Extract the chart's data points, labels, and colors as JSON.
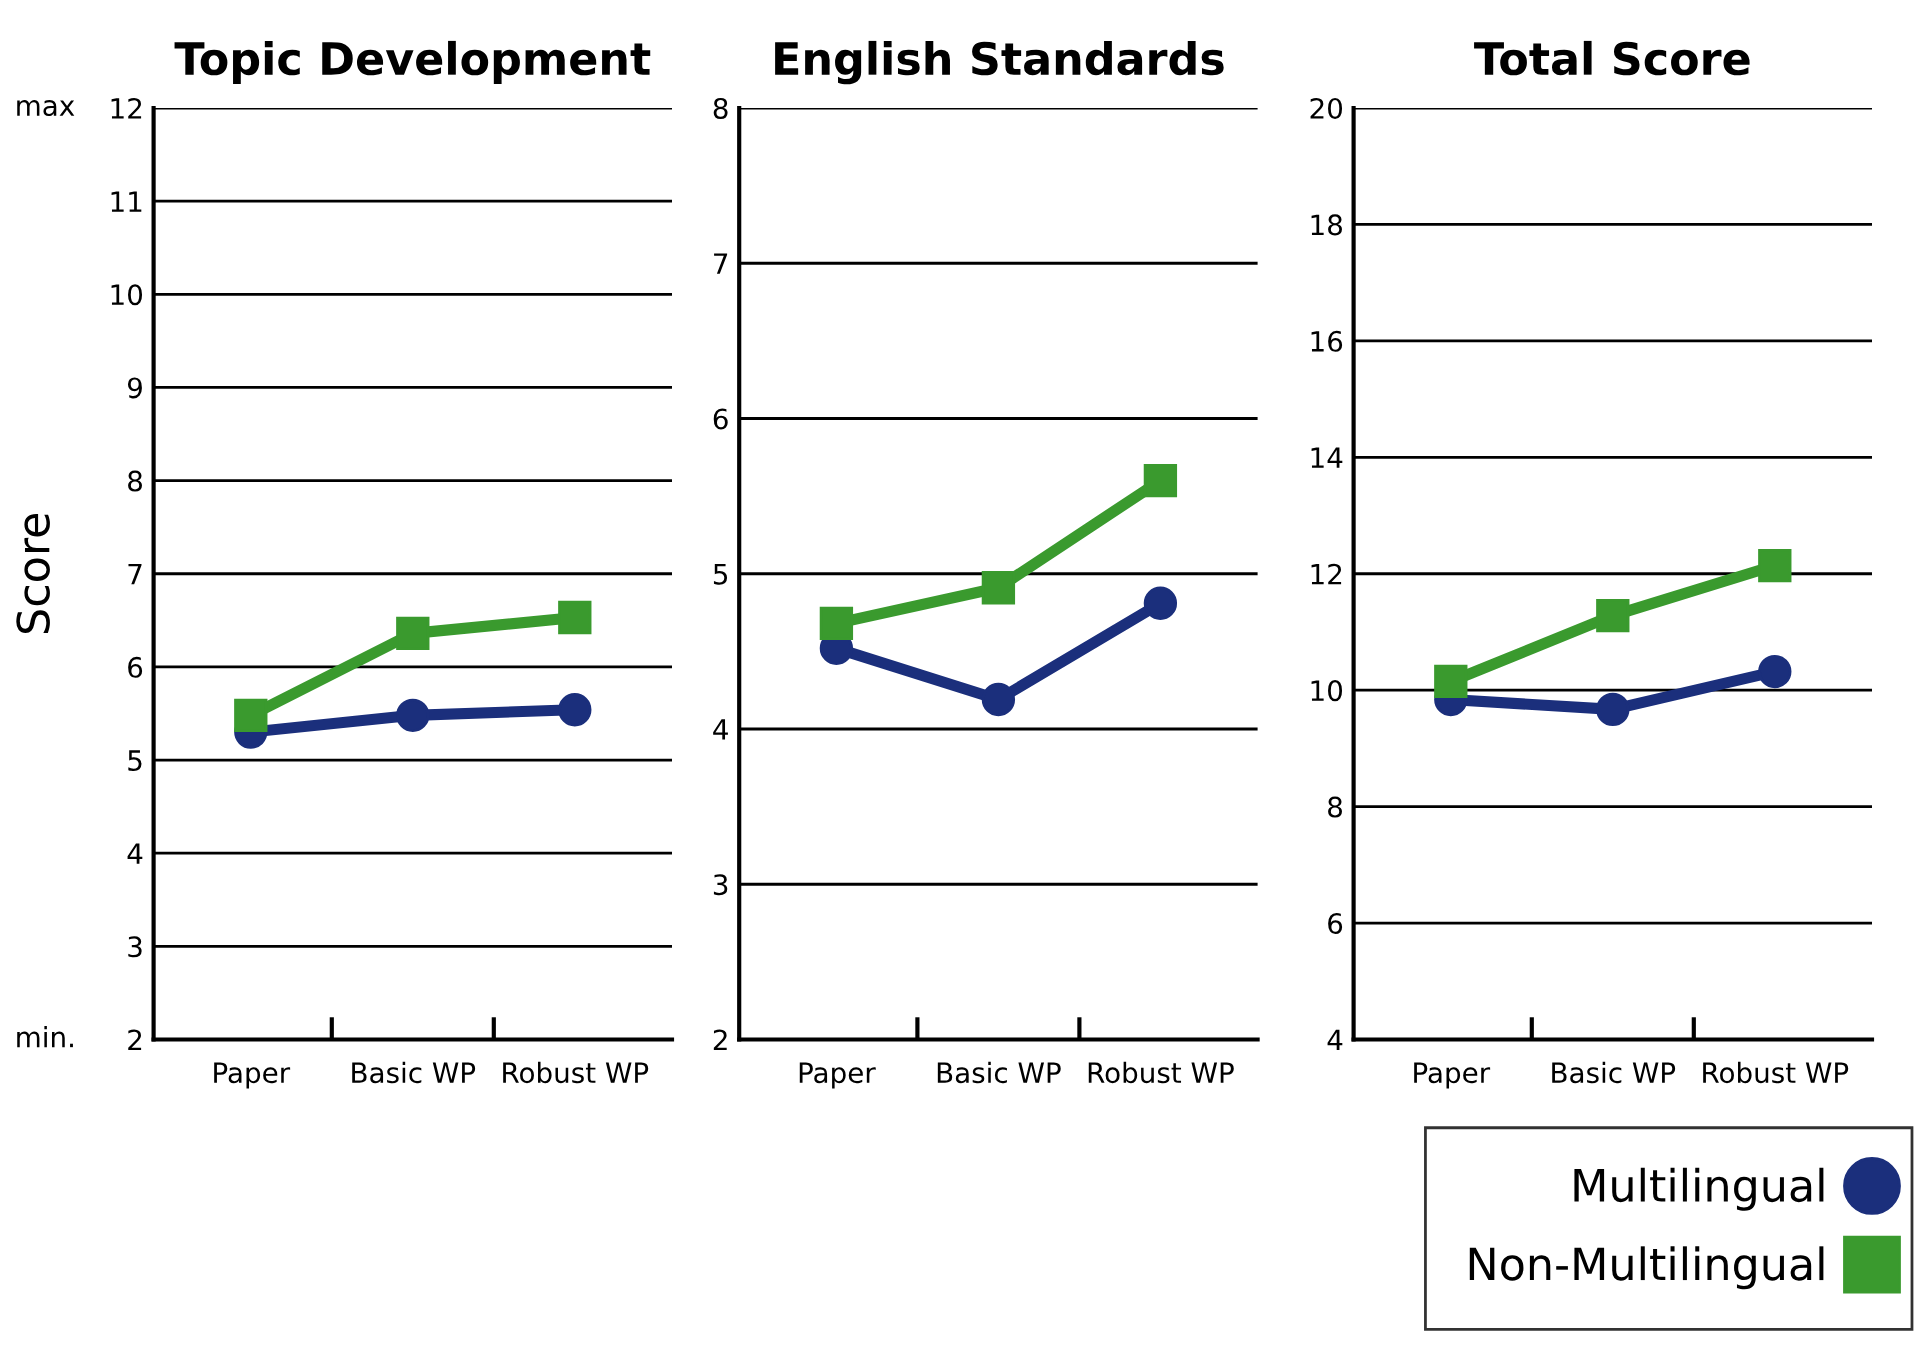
{
  "chart_data": [
    {
      "type": "line",
      "title": "Topic Development",
      "ylabel": "Score",
      "categories": [
        "Paper",
        "Basic WP",
        "Robust WP"
      ],
      "ylim": [
        2,
        12
      ],
      "yticks": [
        2,
        3,
        4,
        5,
        6,
        7,
        8,
        9,
        10,
        11,
        12
      ],
      "grid": "y",
      "annotations": [
        "max",
        "min."
      ],
      "series": [
        {
          "color": "#1b2f7c",
          "marker": "circle",
          "values": [
            5.3,
            5.48,
            5.54
          ]
        },
        {
          "color": "#3a9a2e",
          "marker": "square",
          "values": [
            5.48,
            6.36,
            6.53
          ]
        }
      ]
    },
    {
      "type": "line",
      "title": "English Standards",
      "categories": [
        "Paper",
        "Basic WP",
        "Robust WP"
      ],
      "ylim": [
        2,
        8
      ],
      "yticks": [
        2,
        3,
        4,
        5,
        6,
        7,
        8
      ],
      "grid": "y",
      "series": [
        {
          "color": "#1b2f7c",
          "marker": "circle",
          "values": [
            4.52,
            4.19,
            4.81
          ]
        },
        {
          "color": "#3a9a2e",
          "marker": "square",
          "values": [
            4.68,
            4.91,
            5.6
          ]
        }
      ]
    },
    {
      "type": "line",
      "title": "Total Score",
      "categories": [
        "Paper",
        "Basic WP",
        "Robust WP"
      ],
      "ylim": [
        4,
        20
      ],
      "yticks": [
        4,
        6,
        8,
        10,
        12,
        14,
        16,
        18,
        20
      ],
      "grid": "y",
      "legend": "bottom right",
      "series": [
        {
          "name": "Multilingual",
          "color": "#1b2f7c",
          "marker": "circle",
          "values": [
            9.84,
            9.67,
            10.32
          ]
        },
        {
          "name": "Non-Multilingual",
          "color": "#3a9a2e",
          "marker": "square",
          "values": [
            10.15,
            11.28,
            12.14
          ]
        }
      ]
    }
  ]
}
